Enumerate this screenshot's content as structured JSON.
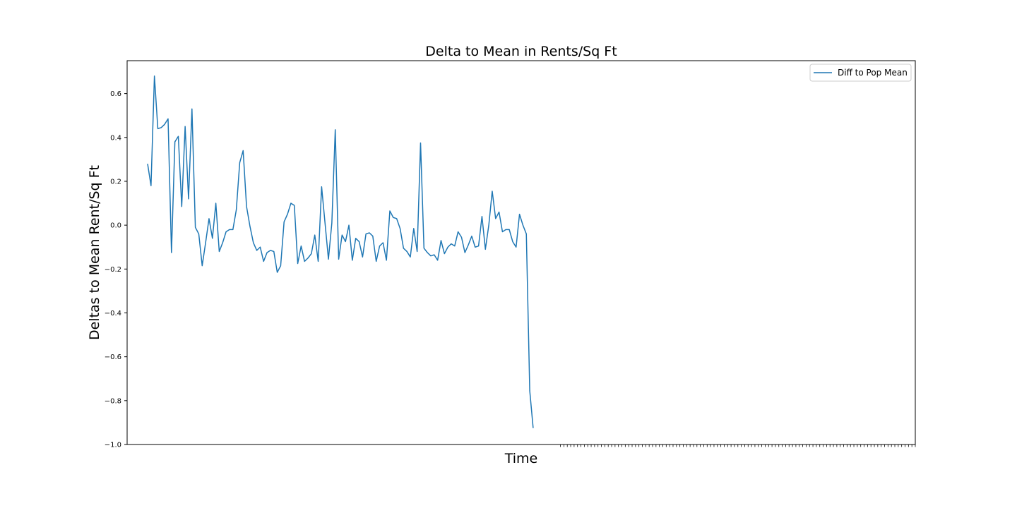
{
  "chart_data": {
    "type": "line",
    "title": "Delta to Mean in Rents/Sq Ft",
    "xlabel": "Time",
    "ylabel": "Deltas to Mean Rent/Sq Ft",
    "ylim": [
      -1.0,
      0.75
    ],
    "xlim": [
      -6,
      225
    ],
    "yticks": [
      -1.0,
      -0.8,
      -0.6,
      -0.4,
      -0.2,
      0.0,
      0.2,
      0.4,
      0.6
    ],
    "yticklabels": [
      "−1.0",
      "−0.8",
      "−0.6",
      "−0.4",
      "−0.2",
      "0.0",
      "0.2",
      "0.4",
      "0.6"
    ],
    "xticks_start": 121,
    "xticks_end": 225,
    "grid": false,
    "legend": {
      "position": "top-right",
      "entries": [
        "Diff to Pop Mean"
      ]
    },
    "series": [
      {
        "name": "Diff to Pop Mean",
        "color": "#1f77b4",
        "values": [
          0.28,
          0.18,
          0.68,
          0.44,
          0.445,
          0.46,
          0.485,
          -0.125,
          0.38,
          0.405,
          0.085,
          0.45,
          0.12,
          0.53,
          -0.01,
          -0.04,
          -0.185,
          -0.08,
          0.03,
          -0.06,
          0.1,
          -0.12,
          -0.08,
          -0.03,
          -0.02,
          -0.02,
          0.07,
          0.285,
          0.34,
          0.085,
          -0.005,
          -0.08,
          -0.115,
          -0.1,
          -0.165,
          -0.125,
          -0.115,
          -0.12,
          -0.215,
          -0.185,
          0.015,
          0.05,
          0.1,
          0.09,
          -0.175,
          -0.095,
          -0.165,
          -0.15,
          -0.13,
          -0.045,
          -0.165,
          0.175,
          0.01,
          -0.155,
          0.01,
          0.435,
          -0.155,
          -0.045,
          -0.075,
          0.0,
          -0.16,
          -0.06,
          -0.075,
          -0.145,
          -0.04,
          -0.035,
          -0.05,
          -0.165,
          -0.095,
          -0.08,
          -0.16,
          0.065,
          0.035,
          0.03,
          -0.015,
          -0.105,
          -0.12,
          -0.145,
          -0.015,
          -0.12,
          0.375,
          -0.105,
          -0.125,
          -0.14,
          -0.135,
          -0.16,
          -0.07,
          -0.13,
          -0.1,
          -0.085,
          -0.095,
          -0.03,
          -0.055,
          -0.125,
          -0.09,
          -0.05,
          -0.1,
          -0.095,
          0.04,
          -0.11,
          0.0,
          0.155,
          0.03,
          0.06,
          -0.03,
          -0.02,
          -0.02,
          -0.075,
          -0.1,
          0.05,
          0.0,
          -0.04,
          -0.755,
          -0.925
        ]
      }
    ]
  }
}
